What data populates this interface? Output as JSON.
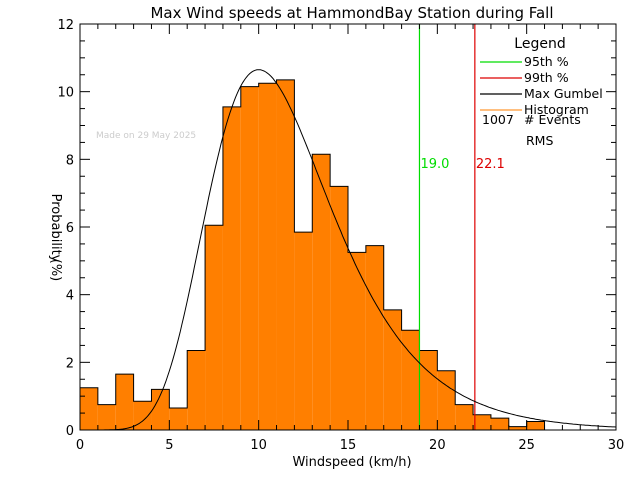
{
  "chart_data": {
    "type": "bar",
    "title": "Max Wind speeds at HammondBay Station during Fall",
    "xlabel": "Windspeed (km/h)",
    "ylabel_line1": "Probability",
    "ylabel_line2": "(%)",
    "xlim": [
      0,
      30
    ],
    "ylim": [
      0,
      12
    ],
    "xticks": [
      0,
      5,
      10,
      15,
      20,
      25,
      30
    ],
    "yticks": [
      0,
      2,
      4,
      6,
      8,
      10,
      12
    ],
    "watermark": "Made on 29 May 2025",
    "bin_width": 1,
    "histogram": {
      "name": "Histogram",
      "color": "#ff7f00",
      "bin_starts": [
        0,
        1,
        2,
        3,
        4,
        5,
        6,
        7,
        8,
        9,
        10,
        11,
        12,
        13,
        14,
        15,
        16,
        17,
        18,
        19,
        20,
        21,
        22,
        23,
        24,
        25,
        26,
        27,
        28,
        29
      ],
      "values": [
        1.25,
        0.75,
        1.65,
        0.85,
        1.2,
        0.65,
        2.35,
        6.05,
        9.55,
        10.15,
        10.25,
        10.35,
        5.85,
        8.15,
        7.2,
        5.25,
        5.45,
        3.55,
        2.95,
        2.35,
        1.75,
        0.75,
        0.45,
        0.35,
        0.1,
        0.25,
        0,
        0,
        0,
        0
      ]
    },
    "gumbel": {
      "name": "Max Gumbel",
      "color": "#000000",
      "mode": 10,
      "scale": 3.45,
      "peak": 10.65
    },
    "percentiles": [
      {
        "name": "95th %",
        "value": 19.0,
        "label": "19.0",
        "color": "#00dd00"
      },
      {
        "name": "99th %",
        "value": 22.1,
        "label": "22.1",
        "color": "#dd0000"
      }
    ],
    "legend": {
      "title": "Legend",
      "placement": "top-right",
      "entries": [
        {
          "label": "95th %",
          "color": "#00dd00"
        },
        {
          "label": "99th %",
          "color": "#dd0000"
        },
        {
          "label": "Max Gumbel",
          "color": "#000000"
        },
        {
          "label": "Histogram",
          "color": "#ff9933"
        }
      ],
      "events_count": "1007",
      "events_label": "# Events",
      "rms_label": "RMS"
    }
  }
}
